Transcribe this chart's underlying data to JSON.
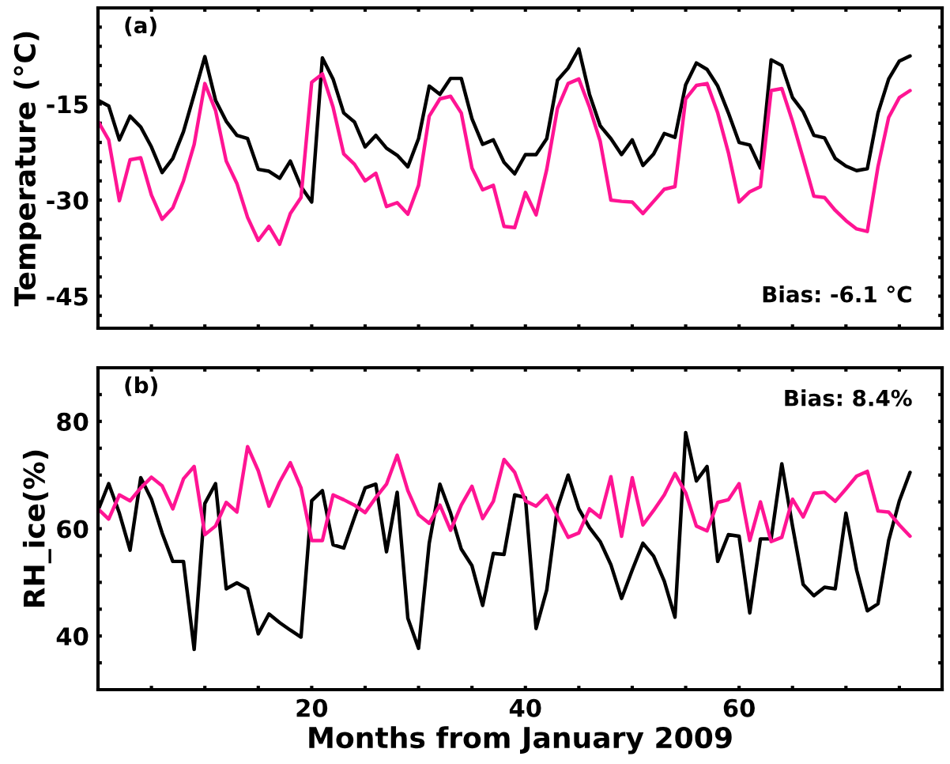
{
  "chart_data": [
    {
      "type": "line",
      "ylabel": "Temperature (°C)",
      "annotations": [
        "(a)",
        "Bias: -6.1 °C"
      ],
      "x": [
        0,
        1,
        2,
        3,
        4,
        5,
        6,
        7,
        8,
        9,
        10,
        11,
        12,
        13,
        14,
        15,
        16,
        17,
        18,
        19,
        20,
        21,
        22,
        23,
        24,
        25,
        26,
        27,
        28,
        29,
        30,
        31,
        32,
        33,
        34,
        35,
        36,
        37,
        38,
        39,
        40,
        41,
        42,
        43,
        44,
        45,
        46,
        47,
        48,
        49,
        50,
        51,
        52,
        53,
        54,
        55,
        56,
        57,
        58,
        59,
        60,
        61,
        62,
        63,
        64,
        65,
        66,
        67,
        68,
        69,
        70,
        71,
        72,
        73,
        74,
        75,
        76
      ],
      "series": [
        {
          "color": "#000000",
          "values": [
            -14.4,
            -15.3,
            -20.6,
            -16.9,
            -18.6,
            -21.7,
            -25.7,
            -23.5,
            -19.3,
            -13.5,
            -7.6,
            -14.4,
            -17.7,
            -19.9,
            -20.4,
            -25.2,
            -25.5,
            -26.6,
            -23.9,
            -27.9,
            -30.3,
            -7.8,
            -11.1,
            -16.4,
            -17.8,
            -21.7,
            -19.9,
            -21.9,
            -23.0,
            -24.8,
            -20.4,
            -12.2,
            -13.5,
            -11.0,
            -11.0,
            -17.3,
            -21.3,
            -20.6,
            -24.1,
            -25.9,
            -22.9,
            -22.9,
            -20.4,
            -11.3,
            -9.4,
            -6.4,
            -13.5,
            -18.4,
            -20.4,
            -22.9,
            -20.6,
            -24.6,
            -22.8,
            -19.6,
            -20.2,
            -12.0,
            -8.6,
            -9.6,
            -12.2,
            -16.4,
            -21.0,
            -21.4,
            -25.0,
            -8.1,
            -9.0,
            -14.0,
            -16.2,
            -19.9,
            -20.3,
            -23.5,
            -24.7,
            -25.4,
            -25.1,
            -16.4,
            -11.1,
            -8.3,
            -7.5
          ]
        },
        {
          "color": "#ff1493",
          "values": [
            -17.7,
            -20.6,
            -30.1,
            -23.7,
            -23.4,
            -29.2,
            -33.0,
            -31.2,
            -27.0,
            -21.3,
            -11.8,
            -16.0,
            -23.9,
            -27.4,
            -32.7,
            -36.3,
            -34.1,
            -36.9,
            -32.1,
            -29.6,
            -11.6,
            -10.3,
            -15.5,
            -22.8,
            -24.4,
            -27.0,
            -25.8,
            -31.0,
            -30.4,
            -32.2,
            -27.7,
            -16.9,
            -14.2,
            -13.8,
            -16.4,
            -25.0,
            -28.4,
            -27.7,
            -34.1,
            -34.3,
            -28.8,
            -32.3,
            -25.2,
            -15.7,
            -11.8,
            -11.1,
            -15.5,
            -20.8,
            -30.0,
            -30.2,
            -30.3,
            -32.1,
            -30.2,
            -28.3,
            -27.9,
            -14.2,
            -12.1,
            -11.8,
            -16.4,
            -22.6,
            -30.3,
            -28.7,
            -27.9,
            -12.9,
            -12.6,
            -17.7,
            -23.5,
            -29.4,
            -29.6,
            -31.6,
            -33.2,
            -34.5,
            -34.9,
            -24.8,
            -17.1,
            -14.0,
            -12.9
          ]
        }
      ],
      "xlim": [
        0,
        79
      ],
      "xticks": [
        {
          "value": 5,
          "label": null
        },
        {
          "value": 10,
          "label": null
        },
        {
          "value": 15,
          "label": null
        },
        {
          "value": 20,
          "label": null
        },
        {
          "value": 25,
          "label": null
        },
        {
          "value": 30,
          "label": null
        },
        {
          "value": 35,
          "label": null
        },
        {
          "value": 40,
          "label": null
        },
        {
          "value": 45,
          "label": null
        },
        {
          "value": 50,
          "label": null
        },
        {
          "value": 55,
          "label": null
        },
        {
          "value": 60,
          "label": null
        },
        {
          "value": 65,
          "label": null
        },
        {
          "value": 70,
          "label": null
        },
        {
          "value": 75,
          "label": null
        }
      ],
      "ylim": [
        -50,
        0
      ],
      "yticks": [
        {
          "value": -48,
          "label": null
        },
        -45,
        {
          "value": -42,
          "label": null
        },
        {
          "value": -39,
          "label": null
        },
        {
          "value": -36,
          "label": null
        },
        {
          "value": -33,
          "label": null
        },
        -30,
        {
          "value": -27,
          "label": null
        },
        {
          "value": -24,
          "label": null
        },
        {
          "value": -21,
          "label": null
        },
        {
          "value": -18,
          "label": null
        },
        -15,
        {
          "value": -12,
          "label": null
        },
        {
          "value": -9,
          "label": null
        },
        {
          "value": -6,
          "label": null
        },
        {
          "value": -3,
          "label": null
        }
      ],
      "tick_labels": "y",
      "grid": false,
      "line_style": "solid",
      "marker": "none"
    },
    {
      "type": "line",
      "xlabel": "Months from January 2009",
      "ylabel": "RH_ice(%)",
      "annotations": [
        "(b)",
        "Bias: 8.4%"
      ],
      "x": [
        0,
        1,
        2,
        3,
        4,
        5,
        6,
        7,
        8,
        9,
        10,
        11,
        12,
        13,
        14,
        15,
        16,
        17,
        18,
        19,
        20,
        21,
        22,
        23,
        24,
        25,
        26,
        27,
        28,
        29,
        30,
        31,
        32,
        33,
        34,
        35,
        36,
        37,
        38,
        39,
        40,
        41,
        42,
        43,
        44,
        45,
        46,
        47,
        48,
        49,
        50,
        51,
        52,
        53,
        54,
        55,
        56,
        57,
        58,
        59,
        60,
        61,
        62,
        63,
        64,
        65,
        66,
        67,
        68,
        69,
        70,
        71,
        72,
        73,
        74,
        75,
        76
      ],
      "series": [
        {
          "color": "#000000",
          "values": [
            63.4,
            68.4,
            62.9,
            56.0,
            69.5,
            65.5,
            59.2,
            53.9,
            53.9,
            37.5,
            64.7,
            68.4,
            48.8,
            49.9,
            48.8,
            40.4,
            44.1,
            42.5,
            41.1,
            39.8,
            65.2,
            67.1,
            57.0,
            56.4,
            62.1,
            67.6,
            68.3,
            55.7,
            66.8,
            43.3,
            37.7,
            57.3,
            68.3,
            62.9,
            56.2,
            53.1,
            45.7,
            55.4,
            55.2,
            66.3,
            65.8,
            41.4,
            48.6,
            63.9,
            70.0,
            63.7,
            60.2,
            57.6,
            53.3,
            47.0,
            52.3,
            57.3,
            54.9,
            50.2,
            43.5,
            77.9,
            68.9,
            71.6,
            53.9,
            58.9,
            58.6,
            44.3,
            58.1,
            58.1,
            72.1,
            60.5,
            49.6,
            47.5,
            49.1,
            48.8,
            62.9,
            52.3,
            44.7,
            46.0,
            57.8,
            65.2,
            70.5
          ]
        },
        {
          "color": "#ff1493",
          "values": [
            63.7,
            61.8,
            66.3,
            65.2,
            67.6,
            69.6,
            68.0,
            63.7,
            69.3,
            71.6,
            58.9,
            60.5,
            64.9,
            63.1,
            75.3,
            70.8,
            64.2,
            68.7,
            72.3,
            67.6,
            57.8,
            57.8,
            66.3,
            65.4,
            64.4,
            63.0,
            65.8,
            68.3,
            73.7,
            67.1,
            62.6,
            61.0,
            64.4,
            59.7,
            64.4,
            67.9,
            61.9,
            65.1,
            72.9,
            70.5,
            65.2,
            64.2,
            66.2,
            62.3,
            58.4,
            59.2,
            63.7,
            62.1,
            69.7,
            58.6,
            69.5,
            60.7,
            63.4,
            66.3,
            70.3,
            66.7,
            60.5,
            59.6,
            64.9,
            65.4,
            68.4,
            57.8,
            65.0,
            57.6,
            58.4,
            65.5,
            62.2,
            66.6,
            66.8,
            65.1,
            67.4,
            69.8,
            70.7,
            63.3,
            63.1,
            60.7,
            58.6
          ]
        }
      ],
      "xlim": [
        0,
        79
      ],
      "xticks": [
        {
          "value": 5,
          "label": null
        },
        {
          "value": 10,
          "label": null
        },
        {
          "value": 15,
          "label": null
        },
        20,
        {
          "value": 25,
          "label": null
        },
        {
          "value": 30,
          "label": null
        },
        {
          "value": 35,
          "label": null
        },
        40,
        {
          "value": 45,
          "label": null
        },
        {
          "value": 50,
          "label": null
        },
        {
          "value": 55,
          "label": null
        },
        60,
        {
          "value": 65,
          "label": null
        },
        {
          "value": 70,
          "label": null
        },
        {
          "value": 75,
          "label": null
        }
      ],
      "ylim": [
        30,
        90
      ],
      "yticks": [
        {
          "value": 35,
          "label": null
        },
        40,
        {
          "value": 45,
          "label": null
        },
        {
          "value": 50,
          "label": null
        },
        {
          "value": 55,
          "label": null
        },
        60,
        {
          "value": 65,
          "label": null
        },
        {
          "value": 70,
          "label": null
        },
        {
          "value": 75,
          "label": null
        },
        80,
        {
          "value": 85,
          "label": null
        }
      ],
      "grid": false,
      "line_style": "solid",
      "marker": "none"
    }
  ]
}
